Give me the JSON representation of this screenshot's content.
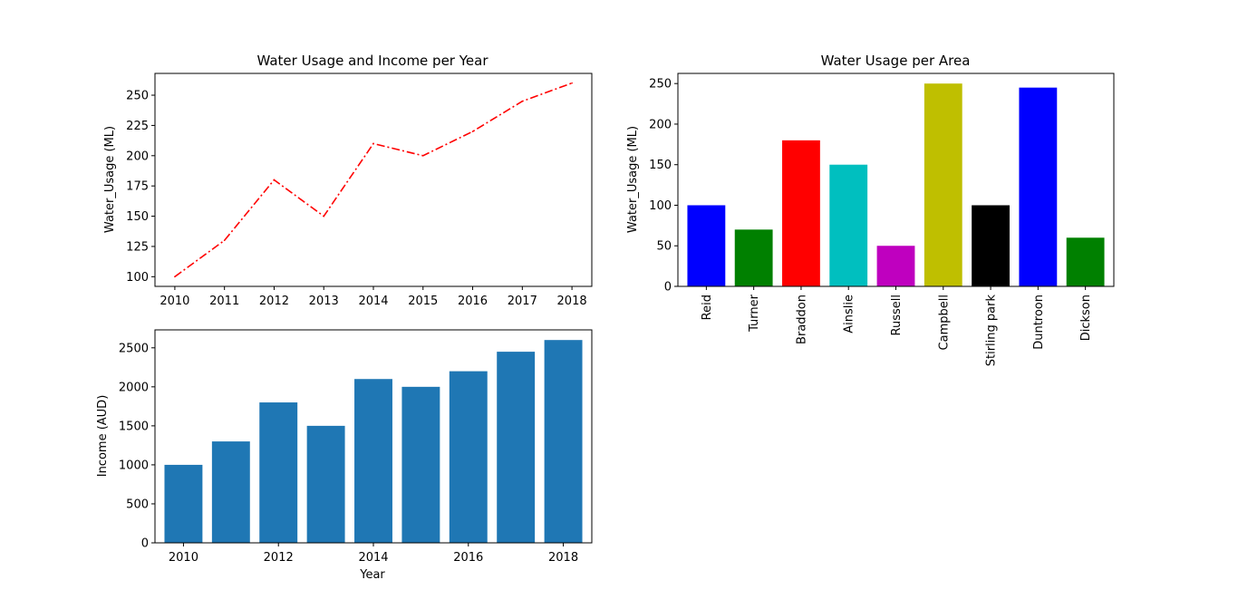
{
  "chart_data": [
    {
      "type": "line",
      "title": "Water Usage and Income per Year",
      "xlabel": "",
      "ylabel": "Water_Usage (ML)",
      "x": [
        2010,
        2011,
        2012,
        2013,
        2014,
        2015,
        2016,
        2017,
        2018
      ],
      "values": [
        100,
        130,
        180,
        150,
        210,
        200,
        220,
        245,
        260
      ],
      "xticks": [
        2010,
        2011,
        2012,
        2013,
        2014,
        2015,
        2016,
        2017,
        2018
      ],
      "yticks": [
        100,
        125,
        150,
        175,
        200,
        225,
        250
      ],
      "xlim": [
        2009.6,
        2018.4
      ],
      "ylim": [
        92,
        268
      ],
      "line_color": "#ff0000",
      "line_style": "dash-dot",
      "grid": false
    },
    {
      "type": "bar",
      "title": "",
      "xlabel": "Year",
      "ylabel": "Income (AUD)",
      "x": [
        2010,
        2011,
        2012,
        2013,
        2014,
        2015,
        2016,
        2017,
        2018
      ],
      "values": [
        1000,
        1300,
        1800,
        1500,
        2100,
        2000,
        2200,
        2450,
        2600
      ],
      "xticks": [
        2010,
        2012,
        2014,
        2016,
        2018
      ],
      "yticks": [
        0,
        500,
        1000,
        1500,
        2000,
        2500
      ],
      "xlim": [
        2009.4,
        2018.6
      ],
      "ylim": [
        0,
        2730
      ],
      "bar_color": "#1f77b4",
      "grid": false
    },
    {
      "type": "bar",
      "title": "Water Usage per Area",
      "xlabel": "",
      "ylabel": "Water_Usage (ML)",
      "categories": [
        "Reid",
        "Turner",
        "Braddon",
        "Ainslie",
        "Russell",
        "Campbell",
        "Stirling park",
        "Duntroon",
        "Dickson"
      ],
      "values": [
        100,
        70,
        180,
        150,
        50,
        250,
        100,
        245,
        60
      ],
      "colors": [
        "#0000ff",
        "#008000",
        "#ff0000",
        "#00bfbf",
        "#bf00bf",
        "#bfbf00",
        "#000000",
        "#0000ff",
        "#008000"
      ],
      "yticks": [
        0,
        50,
        100,
        150,
        200,
        250
      ],
      "ylim": [
        0,
        262.5
      ],
      "grid": false
    }
  ]
}
